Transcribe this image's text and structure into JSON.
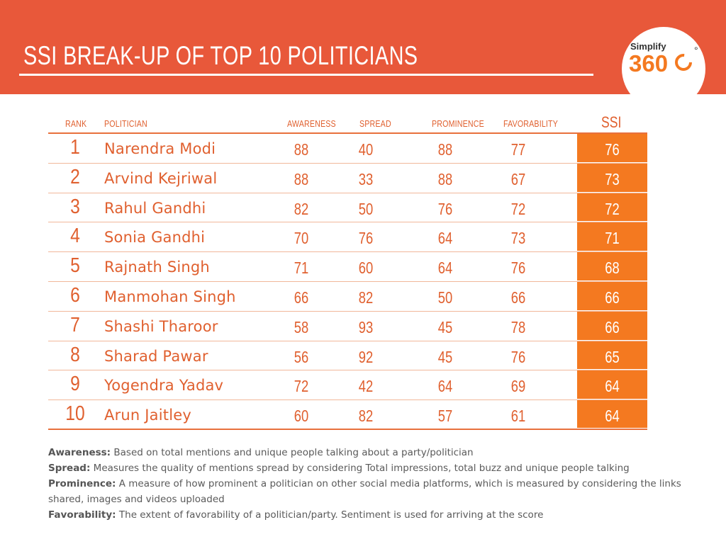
{
  "header": {
    "title": "SSI BREAK-UP OF TOP 10 POLITICIANS",
    "logo_line1": "Simplify",
    "logo_line2": "360",
    "logo_degree": "°"
  },
  "table": {
    "headers": {
      "rank": "RANK",
      "politician": "POLITICIAN",
      "awareness": "AWARENESS",
      "spread": "SPREAD",
      "prominence": "PROMINENCE",
      "favorability": "FAVORABILITY",
      "ssi": "SSI"
    },
    "rows": [
      {
        "rank": "1",
        "name": "Narendra Modi",
        "awareness": "88",
        "spread": "40",
        "prominence": "88",
        "favorability": "77",
        "ssi": "76"
      },
      {
        "rank": "2",
        "name": "Arvind Kejriwal",
        "awareness": "88",
        "spread": "33",
        "prominence": "88",
        "favorability": "67",
        "ssi": "73"
      },
      {
        "rank": "3",
        "name": "Rahul Gandhi",
        "awareness": "82",
        "spread": "50",
        "prominence": "76",
        "favorability": "72",
        "ssi": "72"
      },
      {
        "rank": "4",
        "name": "Sonia Gandhi",
        "awareness": "70",
        "spread": "76",
        "prominence": "64",
        "favorability": "73",
        "ssi": "71"
      },
      {
        "rank": "5",
        "name": "Rajnath Singh",
        "awareness": "71",
        "spread": "60",
        "prominence": "64",
        "favorability": "76",
        "ssi": "68"
      },
      {
        "rank": "6",
        "name": "Manmohan Singh",
        "awareness": "66",
        "spread": "82",
        "prominence": "50",
        "favorability": "66",
        "ssi": "66"
      },
      {
        "rank": "7",
        "name": "Shashi Tharoor",
        "awareness": "58",
        "spread": "93",
        "prominence": "45",
        "favorability": "78",
        "ssi": "66"
      },
      {
        "rank": "8",
        "name": "Sharad Pawar",
        "awareness": "56",
        "spread": "92",
        "prominence": "45",
        "favorability": "76",
        "ssi": "65"
      },
      {
        "rank": "9",
        "name": "Yogendra Yadav",
        "awareness": "72",
        "spread": "42",
        "prominence": "64",
        "favorability": "69",
        "ssi": "64"
      },
      {
        "rank": "10",
        "name": "Arun Jaitley",
        "awareness": "60",
        "spread": "82",
        "prominence": "57",
        "favorability": "61",
        "ssi": "64"
      }
    ]
  },
  "notes": [
    {
      "term": "Awareness:",
      "text": " Based on total mentions and unique people talking about a party/politician"
    },
    {
      "term": "Spread:",
      "text": " Measures the quality of mentions spread by considering Total impressions, total buzz and unique people talking"
    },
    {
      "term": "Prominence:",
      "text": " A measure of how prominent a politician on other social media platforms, which is measured by considering the links shared, images and videos uploaded"
    },
    {
      "term": "Favorability:",
      "text": " The extent of favorability of a politician/party. Sentiment is used for arriving at the score"
    }
  ],
  "colors": {
    "brand_orange": "#e8583a",
    "accent_orange": "#f47920",
    "text_orange": "#e0602f"
  }
}
